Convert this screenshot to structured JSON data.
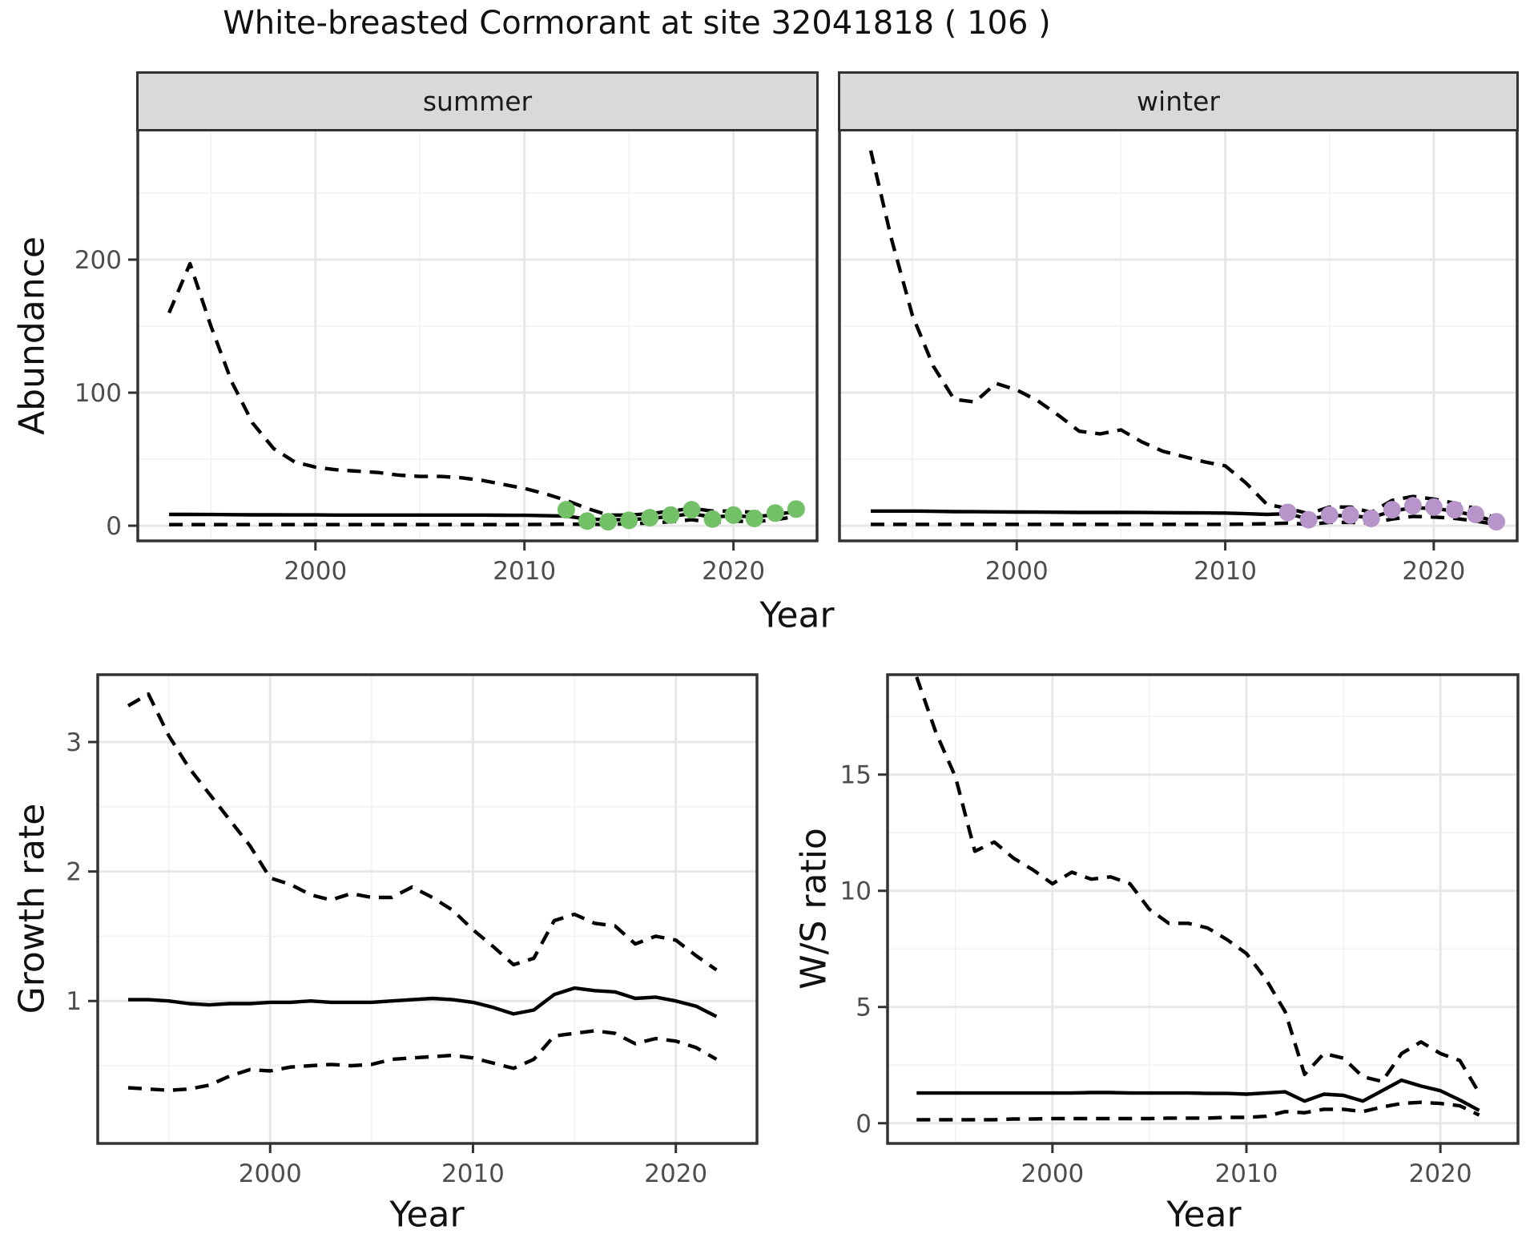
{
  "title": "White-breasted Cormorant at site 32041818 ( 106 )",
  "facets": {
    "summer": "summer",
    "winter": "winter"
  },
  "labels": {
    "abundance": "Abundance",
    "year": "Year",
    "growth": "Growth rate",
    "ws": "W/S ratio"
  },
  "colors": {
    "summer_points": "#73c167",
    "winter_points": "#b795ca",
    "line": "#000000",
    "grid_major": "#e7e7e7",
    "grid_minor": "#f2f2f2",
    "panel_border": "#333333",
    "strip_fill": "#d9d9d9",
    "tick_text": "#4d4d4d"
  },
  "chart_data": [
    {
      "id": "abundance_summer",
      "type": "line",
      "facet": "summer",
      "ylabel": "Abundance",
      "xlabel": "Year",
      "xlim": [
        1991.5,
        2024
      ],
      "ylim": [
        -11.4,
        297.6
      ],
      "xticks": [
        2000,
        2010,
        2020
      ],
      "xminor": [
        1995,
        2005,
        2015
      ],
      "yticks": [
        0,
        100,
        200
      ],
      "yminor": [
        50,
        150,
        250
      ],
      "grid": true,
      "legend": "none",
      "x": [
        1993,
        1994,
        1995,
        1996,
        1997,
        1998,
        1999,
        2000,
        2001,
        2002,
        2003,
        2004,
        2005,
        2006,
        2007,
        2008,
        2009,
        2010,
        2011,
        2012,
        2013,
        2014,
        2015,
        2016,
        2017,
        2018,
        2019,
        2020,
        2021,
        2022,
        2023
      ],
      "series": [
        {
          "name": "upper_ci",
          "style": "dashed",
          "values": [
            160,
            197,
            150,
            108,
            77,
            58,
            48,
            44,
            42,
            41,
            40,
            38,
            37,
            37,
            36,
            34,
            31,
            28,
            24,
            19,
            13,
            8,
            8,
            9,
            11,
            13,
            11,
            11,
            10,
            12,
            15
          ]
        },
        {
          "name": "median",
          "style": "solid",
          "values": [
            8.5,
            8.5,
            8.4,
            8.3,
            8.2,
            8.2,
            8.1,
            8.1,
            8,
            8,
            8,
            8,
            8,
            8,
            8,
            8,
            7.9,
            7.8,
            7.5,
            7.2,
            5,
            4.5,
            4.5,
            5.5,
            7,
            9,
            6.5,
            7.5,
            6.5,
            8.5,
            10.5
          ]
        },
        {
          "name": "lower_ci",
          "style": "dashed",
          "values": [
            0.8,
            0.8,
            0.8,
            0.8,
            0.8,
            0.8,
            0.8,
            0.8,
            0.8,
            0.8,
            0.8,
            0.8,
            0.8,
            0.8,
            0.8,
            0.8,
            0.8,
            0.9,
            1,
            1.2,
            1,
            1,
            1.5,
            2,
            3,
            4.5,
            2.5,
            3.5,
            3,
            4.5,
            7
          ]
        },
        {
          "name": "observed_counts",
          "style": "points",
          "color_key": "summer_points",
          "x": [
            2012,
            2013,
            2014,
            2015,
            2016,
            2017,
            2018,
            2019,
            2020,
            2021,
            2022,
            2023
          ],
          "values": [
            12,
            3.5,
            3,
            4,
            6,
            8,
            12,
            5,
            8,
            5.5,
            9.5,
            12.5
          ]
        }
      ]
    },
    {
      "id": "abundance_winter",
      "type": "line",
      "facet": "winter",
      "ylabel": "Abundance",
      "xlabel": "Year",
      "xlim": [
        1991.5,
        2024
      ],
      "ylim": [
        -11.4,
        297.6
      ],
      "xticks": [
        2000,
        2010,
        2020
      ],
      "xminor": [
        1995,
        2005,
        2015
      ],
      "yticks": [
        0,
        100,
        200
      ],
      "yminor": [
        50,
        150,
        250
      ],
      "grid": true,
      "legend": "none",
      "x": [
        1993,
        1994,
        1995,
        1996,
        1997,
        1998,
        1999,
        2000,
        2001,
        2002,
        2003,
        2004,
        2005,
        2006,
        2007,
        2008,
        2009,
        2010,
        2011,
        2012,
        2013,
        2014,
        2015,
        2016,
        2017,
        2018,
        2019,
        2020,
        2021,
        2022,
        2023
      ],
      "series": [
        {
          "name": "upper_ci",
          "style": "dashed",
          "values": [
            282,
            215,
            158,
            120,
            95,
            93,
            107,
            102,
            94,
            83,
            71,
            69,
            72,
            63,
            56,
            52,
            48,
            45,
            32,
            16,
            13,
            9,
            14,
            14,
            10,
            19,
            22,
            20,
            17,
            13,
            5
          ]
        },
        {
          "name": "median",
          "style": "solid",
          "values": [
            11,
            11,
            11,
            10.8,
            10.6,
            10.5,
            10.4,
            10.3,
            10.2,
            10.1,
            10,
            10,
            10,
            9.9,
            9.8,
            9.7,
            9.6,
            9.5,
            9,
            8.5,
            9,
            5,
            7.5,
            7.5,
            6,
            11,
            13.5,
            13,
            11,
            7.5,
            3
          ]
        },
        {
          "name": "lower_ci",
          "style": "dashed",
          "values": [
            1,
            1,
            1,
            1,
            1,
            1,
            1,
            1,
            1,
            1,
            1,
            1,
            1,
            1,
            1,
            1,
            1,
            1,
            1.2,
            1.5,
            2,
            1,
            2.5,
            2.5,
            2,
            5,
            7,
            6.5,
            5.5,
            3.5,
            1
          ]
        },
        {
          "name": "observed_counts",
          "style": "points",
          "color_key": "winter_points",
          "x": [
            2013,
            2014,
            2015,
            2016,
            2017,
            2018,
            2019,
            2020,
            2021,
            2022,
            2023
          ],
          "values": [
            10,
            4.5,
            8,
            8,
            5.5,
            12,
            15,
            14,
            12,
            8.5,
            3
          ]
        }
      ]
    },
    {
      "id": "growth_rate",
      "type": "line",
      "facet": null,
      "ylabel": "Growth rate",
      "xlabel": "Year",
      "xlim": [
        1991.5,
        2024
      ],
      "ylim": [
        -0.1,
        3.52
      ],
      "xticks": [
        2000,
        2010,
        2020
      ],
      "xminor": [
        1995,
        2005,
        2015
      ],
      "yticks": [
        1,
        2,
        3
      ],
      "yminor": [
        0.5,
        1.5,
        2.5
      ],
      "grid": true,
      "legend": "none",
      "x": [
        1993,
        1994,
        1995,
        1996,
        1997,
        1998,
        1999,
        2000,
        2001,
        2002,
        2003,
        2004,
        2005,
        2006,
        2007,
        2008,
        2009,
        2010,
        2011,
        2012,
        2013,
        2014,
        2015,
        2016,
        2017,
        2018,
        2019,
        2020,
        2021,
        2022
      ],
      "series": [
        {
          "name": "upper_ci",
          "style": "dashed",
          "values": [
            3.28,
            3.37,
            3.05,
            2.8,
            2.6,
            2.4,
            2.2,
            1.95,
            1.9,
            1.82,
            1.78,
            1.83,
            1.8,
            1.8,
            1.88,
            1.8,
            1.7,
            1.55,
            1.42,
            1.28,
            1.33,
            1.62,
            1.67,
            1.6,
            1.58,
            1.44,
            1.5,
            1.47,
            1.35,
            1.24
          ]
        },
        {
          "name": "median",
          "style": "solid",
          "values": [
            1.01,
            1.01,
            1,
            0.98,
            0.97,
            0.98,
            0.98,
            0.99,
            0.99,
            1,
            0.99,
            0.99,
            0.99,
            1,
            1.01,
            1.02,
            1.01,
            0.99,
            0.95,
            0.9,
            0.93,
            1.05,
            1.1,
            1.08,
            1.07,
            1.02,
            1.03,
            1,
            0.96,
            0.88
          ]
        },
        {
          "name": "lower_ci",
          "style": "dashed",
          "values": [
            0.33,
            0.32,
            0.31,
            0.32,
            0.35,
            0.42,
            0.47,
            0.46,
            0.49,
            0.5,
            0.51,
            0.5,
            0.51,
            0.55,
            0.56,
            0.57,
            0.58,
            0.56,
            0.52,
            0.48,
            0.55,
            0.73,
            0.75,
            0.77,
            0.75,
            0.67,
            0.71,
            0.69,
            0.64,
            0.55
          ]
        }
      ]
    },
    {
      "id": "ws_ratio",
      "type": "line",
      "facet": null,
      "ylabel": "W/S ratio",
      "xlabel": "Year",
      "xlim": [
        1991.5,
        2024
      ],
      "ylim": [
        -0.87,
        19.3
      ],
      "xticks": [
        2000,
        2010,
        2020
      ],
      "xminor": [
        1995,
        2005,
        2015
      ],
      "yticks": [
        0,
        5,
        10,
        15
      ],
      "yminor": [
        2.5,
        7.5,
        12.5,
        17.5
      ],
      "grid": true,
      "legend": "none",
      "x": [
        1993,
        1994,
        1995,
        1996,
        1997,
        1998,
        1999,
        2000,
        2001,
        2002,
        2003,
        2004,
        2005,
        2006,
        2007,
        2008,
        2009,
        2010,
        2011,
        2012,
        2013,
        2014,
        2015,
        2016,
        2017,
        2018,
        2019,
        2020,
        2021,
        2022
      ],
      "series": [
        {
          "name": "upper_ci",
          "style": "dashed",
          "values": [
            19.2,
            16.8,
            14.9,
            11.7,
            12.1,
            11.4,
            10.9,
            10.3,
            10.8,
            10.5,
            10.6,
            10.3,
            9.2,
            8.6,
            8.6,
            8.4,
            7.9,
            7.3,
            6.2,
            4.8,
            2.1,
            3,
            2.8,
            2,
            1.8,
            3,
            3.5,
            3,
            2.7,
            1.3
          ]
        },
        {
          "name": "median",
          "style": "solid",
          "values": [
            1.3,
            1.3,
            1.3,
            1.3,
            1.3,
            1.3,
            1.3,
            1.3,
            1.3,
            1.32,
            1.32,
            1.3,
            1.3,
            1.3,
            1.3,
            1.28,
            1.28,
            1.25,
            1.3,
            1.35,
            0.95,
            1.25,
            1.2,
            0.95,
            1.4,
            1.85,
            1.6,
            1.4,
            1,
            0.55
          ]
        },
        {
          "name": "lower_ci",
          "style": "dashed",
          "values": [
            0.15,
            0.15,
            0.15,
            0.15,
            0.15,
            0.18,
            0.18,
            0.2,
            0.2,
            0.2,
            0.2,
            0.2,
            0.2,
            0.22,
            0.22,
            0.22,
            0.25,
            0.25,
            0.3,
            0.5,
            0.45,
            0.6,
            0.6,
            0.5,
            0.7,
            0.85,
            0.9,
            0.85,
            0.75,
            0.35
          ]
        }
      ]
    }
  ]
}
